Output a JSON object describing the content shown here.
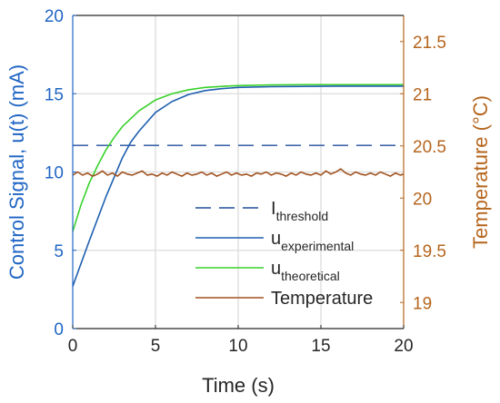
{
  "chart_data": {
    "type": "line",
    "xlabel": "Time (s)",
    "ylabel_left": "Control Signal, u(t) (mA)",
    "ylabel_right": "Temperature (°C)",
    "xlim": [
      0,
      20
    ],
    "ylim_left": [
      0,
      20
    ],
    "ylim_right": [
      18.75,
      21.75
    ],
    "xticks": [
      "0",
      "5",
      "10",
      "15",
      "20"
    ],
    "yticks_left": [
      "0",
      "5",
      "10",
      "15",
      "20"
    ],
    "yticks_right": [
      "19",
      "19.5",
      "20",
      "20.5",
      "21",
      "21.5"
    ],
    "grid": true,
    "legend_position": "bottom-right",
    "colors": {
      "left_axis": "#2066c4",
      "right_axis": "#b5651d",
      "threshold": "#1f4e9c",
      "experimental": "#1f5fb0",
      "theoretical": "#39d12b",
      "temperature": "#a0521f",
      "grid": "#dcdcdc"
    },
    "series": [
      {
        "name": "I",
        "name_sub": "threshold",
        "style": "dashed",
        "axis": "left",
        "x": [
          0,
          20
        ],
        "y": [
          11.7,
          11.7
        ]
      },
      {
        "name": "u",
        "name_sub": "experimental",
        "style": "solid",
        "axis": "left",
        "x": [
          0,
          1,
          2,
          3,
          3.5,
          4,
          5,
          6,
          7,
          8,
          9,
          10,
          12,
          14,
          16,
          18,
          20
        ],
        "y": [
          2.7,
          5.6,
          8.4,
          10.9,
          11.9,
          12.6,
          13.8,
          14.5,
          14.95,
          15.2,
          15.32,
          15.4,
          15.45,
          15.47,
          15.48,
          15.48,
          15.48
        ]
      },
      {
        "name": "u",
        "name_sub": "theoretical",
        "style": "solid",
        "axis": "left",
        "x": [
          0,
          0.5,
          1,
          1.5,
          2,
          2.5,
          3,
          4,
          5,
          6,
          7,
          8,
          9,
          10,
          12,
          14,
          16,
          18,
          20
        ],
        "y": [
          6.2,
          7.9,
          9.3,
          10.4,
          11.4,
          12.2,
          12.9,
          13.9,
          14.6,
          15.0,
          15.25,
          15.4,
          15.47,
          15.52,
          15.56,
          15.58,
          15.58,
          15.58,
          15.58
        ]
      },
      {
        "name": "Temperature",
        "style": "solid",
        "axis": "right",
        "x": [
          0,
          0.3,
          0.6,
          0.9,
          1.2,
          1.5,
          1.8,
          2.1,
          2.4,
          2.7,
          3,
          3.3,
          3.6,
          3.9,
          4.2,
          4.5,
          4.8,
          5.1,
          5.4,
          5.7,
          6,
          6.3,
          6.6,
          6.9,
          7.2,
          7.5,
          7.8,
          8.1,
          8.4,
          8.7,
          9,
          9.3,
          9.6,
          9.9,
          10.2,
          10.5,
          10.8,
          11.1,
          11.4,
          11.7,
          12,
          12.3,
          12.6,
          12.9,
          13.2,
          13.5,
          13.8,
          14.1,
          14.4,
          14.7,
          15,
          15.3,
          15.6,
          15.9,
          16.2,
          16.5,
          16.8,
          17.1,
          17.4,
          17.7,
          18,
          18.3,
          18.6,
          18.9,
          19.2,
          19.5,
          19.8,
          20
        ],
        "y": [
          20.22,
          20.25,
          20.22,
          20.24,
          20.21,
          20.23,
          20.26,
          20.22,
          20.24,
          20.21,
          20.25,
          20.23,
          20.22,
          20.24,
          20.26,
          20.22,
          20.23,
          20.21,
          20.24,
          20.22,
          20.25,
          20.23,
          20.21,
          20.24,
          20.22,
          20.23,
          20.25,
          20.22,
          20.24,
          20.21,
          20.23,
          20.25,
          20.22,
          20.24,
          20.22,
          20.23,
          20.21,
          20.24,
          20.23,
          20.25,
          20.22,
          20.24,
          20.23,
          20.21,
          20.24,
          20.22,
          20.25,
          20.23,
          20.22,
          20.24,
          20.22,
          20.26,
          20.23,
          20.25,
          20.28,
          20.24,
          20.22,
          20.25,
          20.23,
          20.22,
          20.24,
          20.22,
          20.25,
          20.23,
          20.21,
          20.24,
          20.22,
          20.23
        ]
      }
    ],
    "legend": [
      {
        "main": "I",
        "sub": "threshold"
      },
      {
        "main": "u",
        "sub": "experimental"
      },
      {
        "main": "u",
        "sub": "theoretical"
      },
      {
        "main": "Temperature",
        "sub": ""
      }
    ]
  }
}
